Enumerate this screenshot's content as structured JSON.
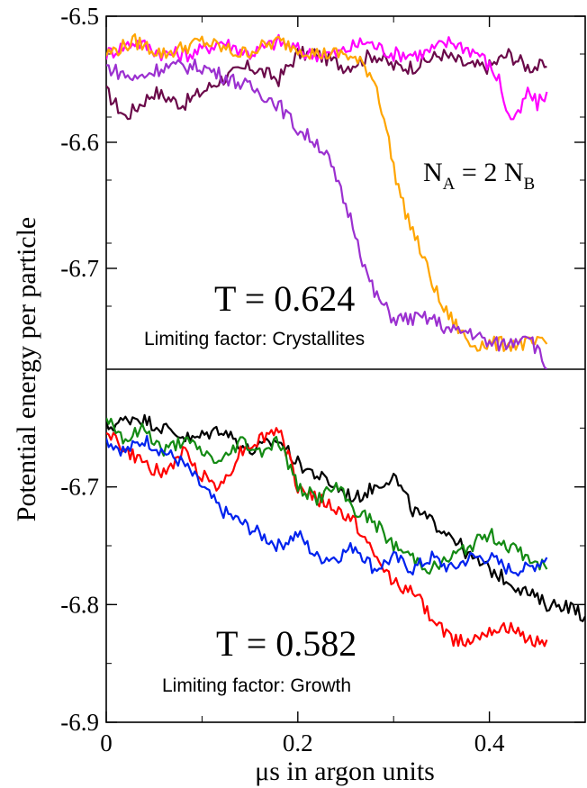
{
  "chart_data": [
    {
      "type": "line",
      "panel": "top",
      "ylabel": "Potential energy per particle",
      "xlabel": "",
      "xlim": [
        0,
        0.5
      ],
      "ylim": [
        -6.78,
        -6.5
      ],
      "ytick_values": [
        -6.5,
        -6.6,
        -6.7
      ],
      "ytick_labels": [
        "-6.5",
        "-6.6",
        "-6.7"
      ],
      "annotations": {
        "temperature": "T = 0.624",
        "limiting_factor": "Limiting factor: Crystallites",
        "ratio_main": "N",
        "ratio_sub_a": "A",
        "ratio_mid": " = 2 N",
        "ratio_sub_b": "B"
      },
      "series": [
        {
          "color": "#6b0a4a",
          "x": [
            0.0,
            0.02,
            0.05,
            0.08,
            0.1,
            0.12,
            0.15,
            0.18,
            0.2,
            0.22,
            0.25,
            0.28,
            0.3,
            0.32,
            0.35,
            0.38,
            0.4,
            0.42,
            0.44,
            0.46
          ],
          "y": [
            -6.56,
            -6.58,
            -6.56,
            -6.57,
            -6.56,
            -6.55,
            -6.54,
            -6.55,
            -6.53,
            -6.53,
            -6.54,
            -6.53,
            -6.54,
            -6.54,
            -6.53,
            -6.54,
            -6.54,
            -6.53,
            -6.54,
            -6.54
          ]
        },
        {
          "color": "#ff00ff",
          "x": [
            0.0,
            0.03,
            0.06,
            0.09,
            0.12,
            0.15,
            0.18,
            0.21,
            0.24,
            0.27,
            0.3,
            0.33,
            0.36,
            0.39,
            0.41,
            0.42,
            0.43,
            0.44,
            0.45,
            0.46
          ],
          "y": [
            -6.53,
            -6.52,
            -6.53,
            -6.53,
            -6.52,
            -6.53,
            -6.52,
            -6.53,
            -6.53,
            -6.52,
            -6.53,
            -6.53,
            -6.52,
            -6.53,
            -6.55,
            -6.58,
            -6.58,
            -6.56,
            -6.57,
            -6.56
          ]
        },
        {
          "color": "#ffa500",
          "x": [
            0.0,
            0.03,
            0.06,
            0.1,
            0.14,
            0.18,
            0.22,
            0.25,
            0.27,
            0.28,
            0.29,
            0.3,
            0.31,
            0.32,
            0.33,
            0.34,
            0.35,
            0.36,
            0.38,
            0.4,
            0.42,
            0.44,
            0.46
          ],
          "y": [
            -6.53,
            -6.52,
            -6.53,
            -6.52,
            -6.53,
            -6.52,
            -6.53,
            -6.53,
            -6.54,
            -6.55,
            -6.58,
            -6.62,
            -6.65,
            -6.67,
            -6.69,
            -6.71,
            -6.73,
            -6.74,
            -6.76,
            -6.76,
            -6.76,
            -6.76,
            -6.76
          ]
        },
        {
          "color": "#9b30d0",
          "x": [
            0.0,
            0.03,
            0.06,
            0.1,
            0.13,
            0.16,
            0.18,
            0.2,
            0.22,
            0.23,
            0.24,
            0.25,
            0.26,
            0.27,
            0.28,
            0.29,
            0.3,
            0.32,
            0.34,
            0.36,
            0.38,
            0.4,
            0.42,
            0.44,
            0.46
          ],
          "y": [
            -6.54,
            -6.55,
            -6.54,
            -6.54,
            -6.55,
            -6.56,
            -6.57,
            -6.59,
            -6.6,
            -6.61,
            -6.63,
            -6.65,
            -6.67,
            -6.7,
            -6.72,
            -6.73,
            -6.74,
            -6.74,
            -6.74,
            -6.75,
            -6.75,
            -6.76,
            -6.76,
            -6.75,
            -6.78
          ]
        }
      ]
    },
    {
      "type": "line",
      "panel": "bottom",
      "ylabel": "Potential energy per particle",
      "xlabel": "μs in argon units",
      "xlim": [
        0,
        0.5
      ],
      "ylim": [
        -6.9,
        -6.6
      ],
      "ytick_values": [
        -6.7,
        -6.8,
        -6.9
      ],
      "ytick_labels": [
        "-6.7",
        "-6.8",
        "-6.9"
      ],
      "xtick_values": [
        0,
        0.2,
        0.4
      ],
      "xtick_labels": [
        "0",
        "0.2",
        "0.4"
      ],
      "annotations": {
        "temperature": "T = 0.582",
        "limiting_factor": "Limiting factor: Growth"
      },
      "series": [
        {
          "color": "#000000",
          "x": [
            0.0,
            0.03,
            0.06,
            0.09,
            0.12,
            0.15,
            0.18,
            0.2,
            0.22,
            0.24,
            0.26,
            0.28,
            0.3,
            0.32,
            0.34,
            0.36,
            0.38,
            0.4,
            0.42,
            0.44,
            0.46,
            0.48,
            0.5
          ],
          "y": [
            -6.65,
            -6.64,
            -6.65,
            -6.66,
            -6.65,
            -6.67,
            -6.66,
            -6.68,
            -6.69,
            -6.7,
            -6.71,
            -6.7,
            -6.69,
            -6.72,
            -6.73,
            -6.74,
            -6.76,
            -6.77,
            -6.78,
            -6.79,
            -6.8,
            -6.8,
            -6.81
          ]
        },
        {
          "color": "#ff0000",
          "x": [
            0.0,
            0.02,
            0.04,
            0.06,
            0.08,
            0.1,
            0.12,
            0.14,
            0.16,
            0.18,
            0.2,
            0.22,
            0.24,
            0.26,
            0.28,
            0.3,
            0.32,
            0.34,
            0.36,
            0.38,
            0.4,
            0.42,
            0.44,
            0.46
          ],
          "y": [
            -6.65,
            -6.67,
            -6.68,
            -6.69,
            -6.67,
            -6.69,
            -6.7,
            -6.67,
            -6.66,
            -6.65,
            -6.7,
            -6.71,
            -6.72,
            -6.73,
            -6.76,
            -6.78,
            -6.79,
            -6.81,
            -6.83,
            -6.83,
            -6.82,
            -6.82,
            -6.83,
            -6.83
          ]
        },
        {
          "color": "#138a13",
          "x": [
            0.0,
            0.02,
            0.04,
            0.06,
            0.08,
            0.1,
            0.12,
            0.14,
            0.16,
            0.18,
            0.2,
            0.22,
            0.24,
            0.26,
            0.28,
            0.3,
            0.32,
            0.34,
            0.36,
            0.38,
            0.4,
            0.42,
            0.44,
            0.46
          ],
          "y": [
            -6.64,
            -6.66,
            -6.65,
            -6.67,
            -6.66,
            -6.67,
            -6.68,
            -6.66,
            -6.67,
            -6.66,
            -6.7,
            -6.71,
            -6.7,
            -6.72,
            -6.73,
            -6.75,
            -6.76,
            -6.77,
            -6.76,
            -6.75,
            -6.74,
            -6.75,
            -6.76,
            -6.77
          ]
        },
        {
          "color": "#0022ee",
          "x": [
            0.0,
            0.02,
            0.04,
            0.06,
            0.08,
            0.1,
            0.12,
            0.14,
            0.16,
            0.18,
            0.2,
            0.22,
            0.24,
            0.26,
            0.28,
            0.3,
            0.32,
            0.34,
            0.36,
            0.38,
            0.4,
            0.42,
            0.44,
            0.46
          ],
          "y": [
            -6.66,
            -6.67,
            -6.66,
            -6.67,
            -6.68,
            -6.7,
            -6.72,
            -6.73,
            -6.74,
            -6.75,
            -6.74,
            -6.76,
            -6.76,
            -6.75,
            -6.77,
            -6.76,
            -6.77,
            -6.76,
            -6.77,
            -6.76,
            -6.76,
            -6.77,
            -6.77,
            -6.76
          ]
        }
      ]
    }
  ]
}
